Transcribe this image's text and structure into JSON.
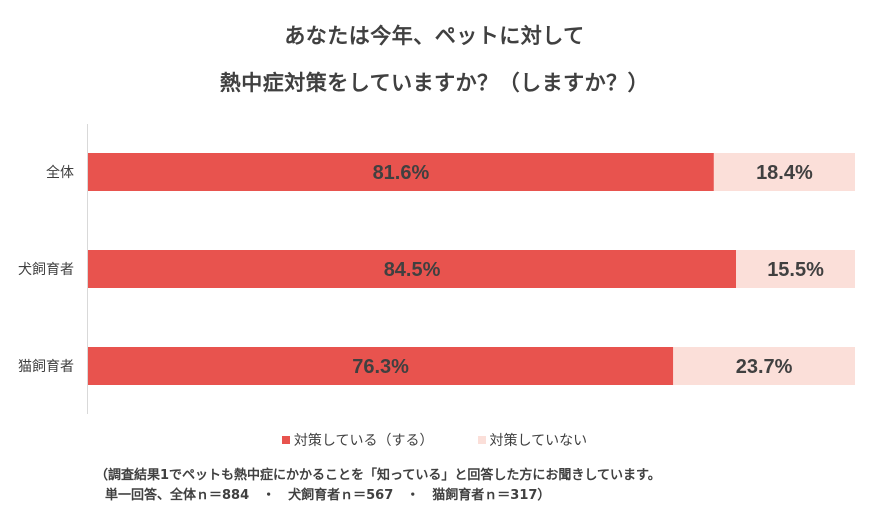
{
  "title": {
    "line1": "あなたは今年、ペットに対して",
    "line2": "熱中症対策をしていますか？（しますか？）"
  },
  "colors": {
    "series1": "#e8534e",
    "series2": "#fbdfd9",
    "axis": "#d9d9d9"
  },
  "chart_data": {
    "type": "bar",
    "orientation": "horizontal",
    "stacked": true,
    "percent": true,
    "categories": [
      "全体",
      "犬飼育者",
      "猫飼育者"
    ],
    "series": [
      {
        "name": "対策している（する）",
        "values": [
          81.6,
          84.5,
          76.3
        ],
        "labels": [
          "81.6%",
          "84.5%",
          "76.3%"
        ]
      },
      {
        "name": "対策していない",
        "values": [
          18.4,
          15.5,
          23.7
        ],
        "labels": [
          "18.4%",
          "15.5%",
          "23.7%"
        ]
      }
    ],
    "xlim": [
      0,
      100
    ],
    "legend_position": "bottom",
    "grid": false
  },
  "notes": {
    "line1": "（調査結果1でペットも熱中症にかかることを「知っている」と回答した方にお聞きしています。",
    "line2": "単一回答、全体ｎ＝884　・　犬飼育者ｎ＝567　・　猫飼育者ｎ＝317）"
  }
}
